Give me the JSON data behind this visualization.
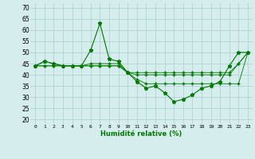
{
  "xlabel": "Humidité relative (%)",
  "ylabel": "",
  "bg_color": "#d5eeed",
  "grid_color": "#aacccc",
  "line_color": "#007700",
  "marker_color": "#007700",
  "x_ticks": [
    0,
    1,
    2,
    3,
    4,
    5,
    6,
    7,
    8,
    9,
    10,
    11,
    12,
    13,
    14,
    15,
    16,
    17,
    18,
    19,
    20,
    21,
    22,
    23
  ],
  "y_ticks": [
    20,
    25,
    30,
    35,
    40,
    45,
    50,
    55,
    60,
    65,
    70
  ],
  "ylim": [
    18,
    72
  ],
  "xlim": [
    -0.5,
    23.5
  ],
  "series": [
    [
      44,
      46,
      45,
      44,
      44,
      44,
      51,
      63,
      47,
      46,
      41,
      37,
      34,
      35,
      32,
      28,
      29,
      31,
      34,
      35,
      37,
      44,
      50,
      50
    ],
    [
      44,
      46,
      45,
      44,
      44,
      44,
      45,
      45,
      45,
      45,
      41,
      38,
      36,
      36,
      36,
      36,
      36,
      36,
      36,
      36,
      36,
      36,
      36,
      50
    ],
    [
      44,
      44,
      44,
      44,
      44,
      44,
      44,
      44,
      44,
      44,
      41,
      40,
      40,
      40,
      40,
      40,
      40,
      40,
      40,
      40,
      40,
      40,
      45,
      50
    ],
    [
      44,
      44,
      44,
      44,
      44,
      44,
      44,
      44,
      44,
      44,
      41,
      41,
      41,
      41,
      41,
      41,
      41,
      41,
      41,
      41,
      41,
      41,
      45,
      50
    ]
  ]
}
